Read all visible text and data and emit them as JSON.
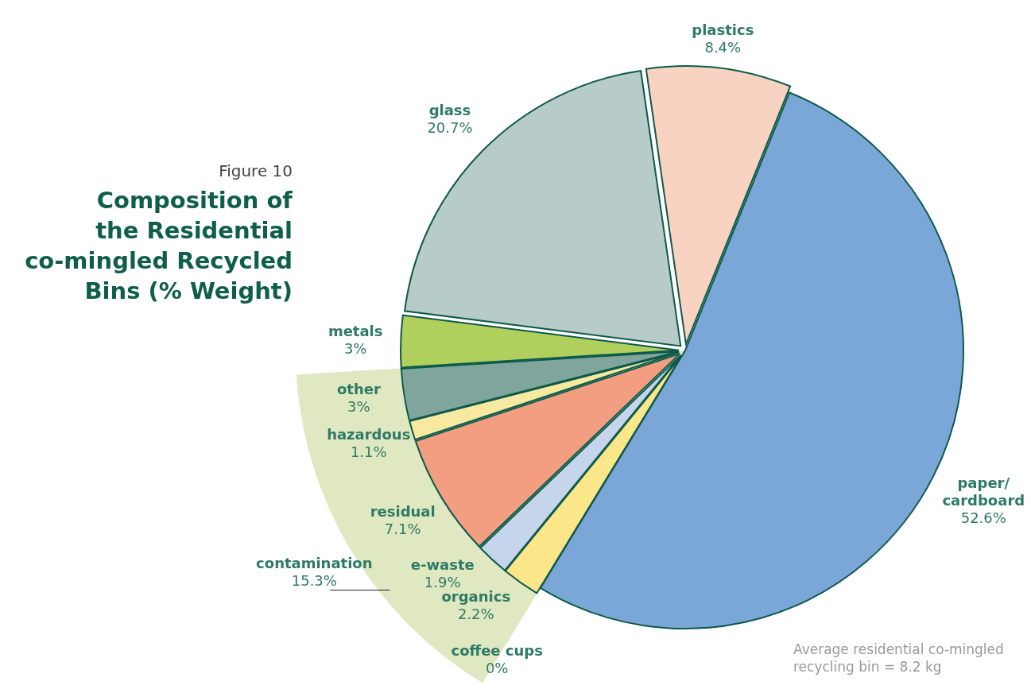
{
  "chart_data": {
    "type": "pie",
    "subtitle": "Figure 10",
    "title": "Composition of\nthe Residential\nco-mingled Recycled\nBins (% Weight)",
    "categories": [
      "paper/\ncardboard",
      "coffee cups",
      "organics",
      "e-waste",
      "residual",
      "hazardous",
      "other",
      "metals",
      "glass",
      "plastics"
    ],
    "values": [
      52.6,
      0,
      2.2,
      1.9,
      7.1,
      1.1,
      3,
      3,
      20.7,
      8.4
    ],
    "colors": [
      "#7ba7d8",
      "#ffffff",
      "#fbe68a",
      "#c5d5ec",
      "#f39e80",
      "#f7e9a0",
      "#7fa59d",
      "#b0cf5c",
      "#b7cbc8",
      "#f9d3c1"
    ],
    "value_labels": [
      "52.6%",
      "0%",
      "2.2%",
      "1.9%",
      "7.1%",
      "1.1%",
      "3%",
      "3%",
      "20.7%",
      "8.4%"
    ],
    "annotations": [
      "contamination\n15.3%",
      "Average residential co-mingled\nrecycling  bin = 8.2 kg"
    ]
  }
}
